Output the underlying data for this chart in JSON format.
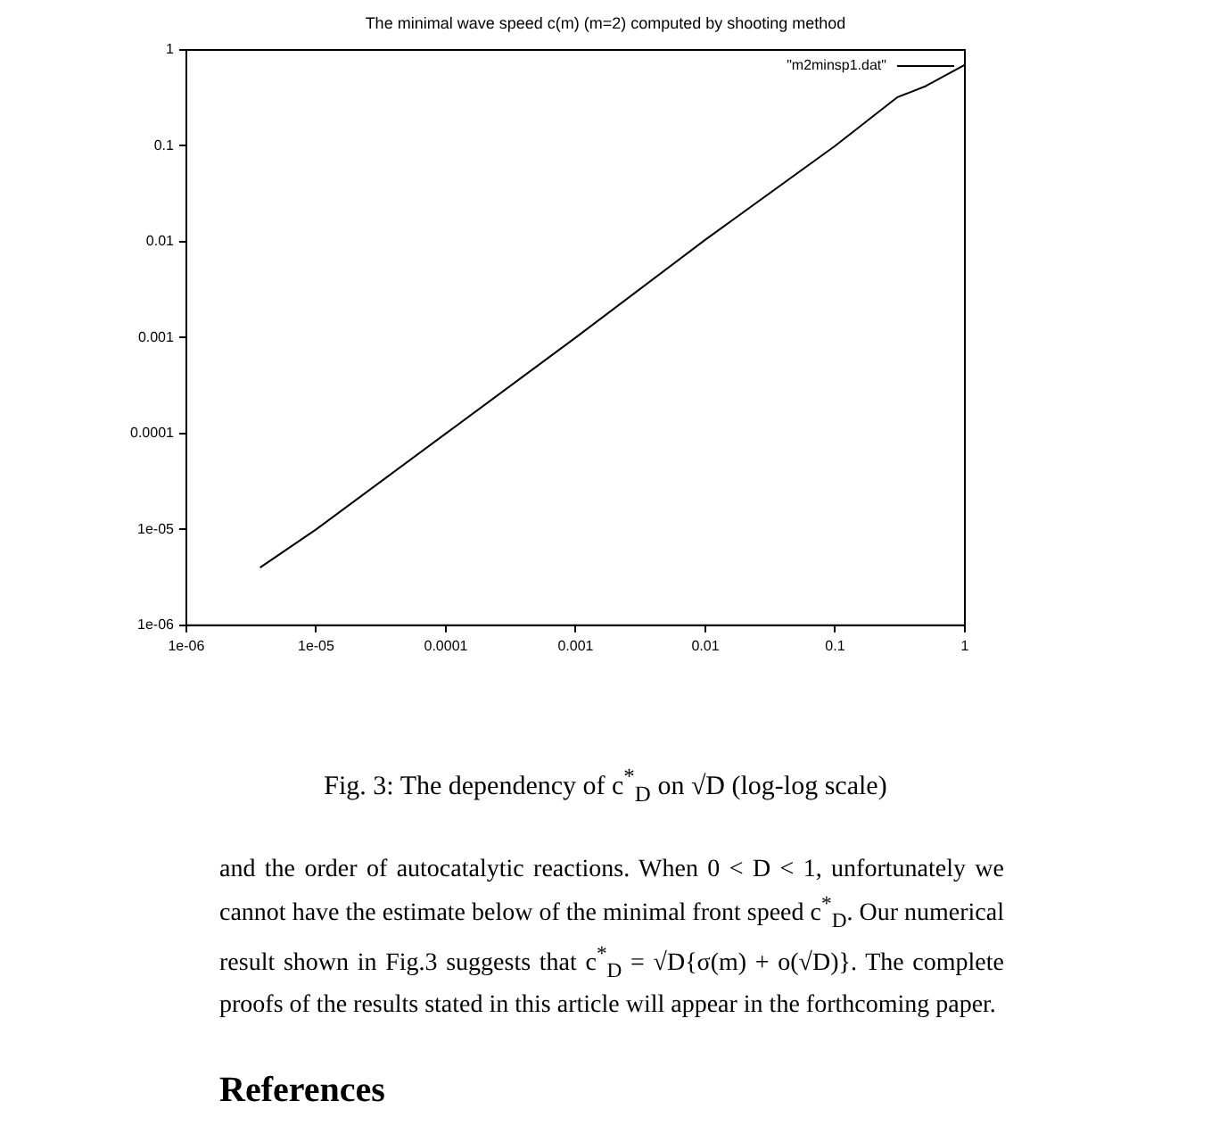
{
  "chart_data": {
    "type": "line",
    "title": "The minimal wave speed c(m) (m=2) computed  by  shooting method",
    "x": [
      3.7e-06,
      1e-05,
      0.0001,
      0.001,
      0.01,
      0.1,
      0.3,
      0.5,
      1
    ],
    "series": [
      {
        "name": "\"m2minsp1.dat\"",
        "color": "#000000",
        "values": [
          4e-06,
          1e-05,
          0.0001,
          0.001,
          0.0105,
          0.1,
          0.32,
          0.42,
          0.7
        ]
      }
    ],
    "log": "xy",
    "xlim": [
      1e-06,
      1
    ],
    "ylim": [
      1e-06,
      1
    ],
    "xticks": [
      {
        "value": 1e-06,
        "label": "1e-06"
      },
      {
        "value": 1e-05,
        "label": "1e-05"
      },
      0.0001,
      0.001,
      0.01,
      0.1,
      1
    ],
    "yticks": [
      {
        "value": 1e-06,
        "label": "1e-06"
      },
      {
        "value": 1e-05,
        "label": "1e-05"
      },
      0.0001,
      0.001,
      0.01,
      0.1,
      1
    ],
    "legend": "top right",
    "marker": "none",
    "line_style": "solid",
    "annotations": [
      "Fig. 3: The dependency of c$^{*}$$_{D}$ on √D (log-log scale)",
      "and the order of autocatalytic reactions. When 0 < D < 1, unfortunately we cannot have the estimate below of the minimal front speed c$^{*}$$_{D}$. Our numerical result shown in Fig.3 suggests that c$^{*}$$_{D}$ = √D{σ(m) + o(√D)}. The complete proofs of the results stated in this article will appear in the forthcoming paper.",
      "References"
    ]
  }
}
